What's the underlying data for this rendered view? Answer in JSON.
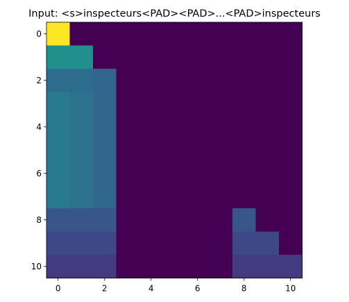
{
  "chart_data": {
    "type": "heatmap",
    "title": "Input: <s>inspecteurs<PAD><PAD>...<PAD>inspecteurs",
    "xlabel": "",
    "ylabel": "",
    "rows": 11,
    "cols": 11,
    "x_ticks": [
      0,
      2,
      4,
      6,
      8,
      10
    ],
    "y_ticks": [
      0,
      2,
      4,
      6,
      8,
      10
    ],
    "colormap": "viridis",
    "grid": false,
    "vmin": 0,
    "vmax": 1,
    "values": [
      [
        1.0,
        0,
        0,
        0,
        0,
        0,
        0,
        0,
        0,
        0,
        0
      ],
      [
        0.5,
        0.5,
        0,
        0,
        0,
        0,
        0,
        0,
        0,
        0,
        0
      ],
      [
        0.36,
        0.36,
        0.33,
        0,
        0,
        0,
        0,
        0,
        0,
        0,
        0
      ],
      [
        0.42,
        0.38,
        0.34,
        0,
        0,
        0,
        0,
        0,
        0,
        0,
        0
      ],
      [
        0.42,
        0.38,
        0.34,
        0,
        0,
        0,
        0,
        0,
        0,
        0,
        0
      ],
      [
        0.42,
        0.38,
        0.34,
        0,
        0,
        0,
        0,
        0,
        0,
        0,
        0
      ],
      [
        0.42,
        0.38,
        0.34,
        0,
        0,
        0,
        0,
        0,
        0,
        0,
        0
      ],
      [
        0.42,
        0.38,
        0.34,
        0,
        0,
        0,
        0,
        0,
        0,
        0,
        0
      ],
      [
        0.27,
        0.27,
        0.27,
        0,
        0,
        0,
        0,
        0,
        0.27,
        0,
        0
      ],
      [
        0.22,
        0.22,
        0.22,
        0,
        0,
        0,
        0,
        0,
        0.22,
        0.22,
        0
      ],
      [
        0.18,
        0.18,
        0.18,
        0,
        0,
        0,
        0,
        0,
        0.18,
        0.18,
        0.18
      ]
    ]
  }
}
